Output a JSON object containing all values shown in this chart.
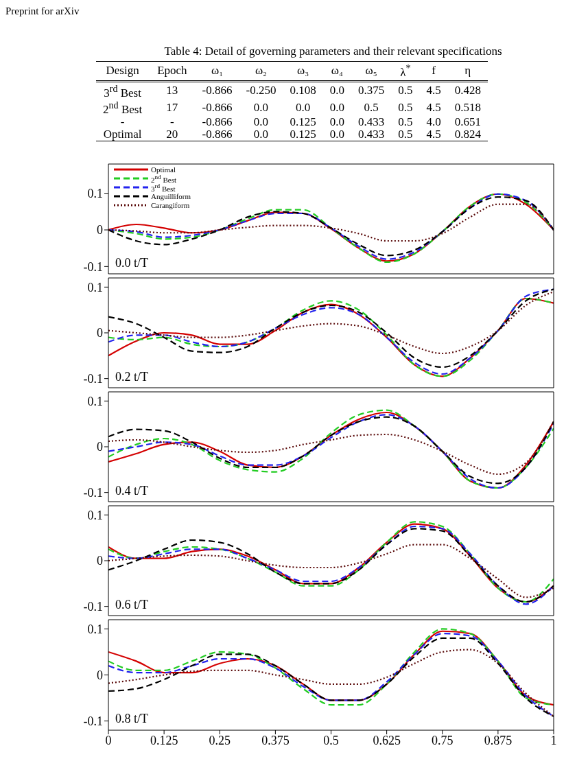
{
  "chart_data": [
    {
      "type": "other",
      "title": "Table 4: Detail of governing parameters and their relevant specifications",
      "annotations": [
        "Preprint for arXiv"
      ],
      "categories": [
        "Design",
        "Epoch",
        "ω₁",
        "ω₂",
        "ω₃",
        "ω₄",
        "ω₅",
        "λ$^{*}$",
        "f",
        "η"
      ],
      "cell_labels": [
        [
          "3$^{rd}$ Best",
          "13",
          "-0.866",
          "-0.250",
          "0.108",
          "0.0",
          "0.375",
          "0.5",
          "4.5",
          "0.428"
        ],
        [
          "2$^{nd}$ Best",
          "17",
          "-0.866",
          "0.0",
          "0.0",
          "0.0",
          "0.5",
          "0.5",
          "4.5",
          "0.518"
        ],
        [
          "-",
          "-",
          "-0.866",
          "0.0",
          "0.125",
          "0.0",
          "0.433",
          "0.5",
          "4.0",
          "0.651"
        ],
        [
          "Optimal",
          "20",
          "-0.866",
          "0.0",
          "0.125",
          "0.0",
          "0.433",
          "0.5",
          "4.5",
          "0.824"
        ]
      ]
    },
    {
      "type": "line",
      "x": [
        0,
        0.0625,
        0.125,
        0.1875,
        0.25,
        0.3125,
        0.375,
        0.4375,
        0.5,
        0.5625,
        0.625,
        0.6875,
        0.75,
        0.8125,
        0.875,
        0.9375,
        1
      ],
      "xlim": [
        0,
        1
      ],
      "xticks": [
        0,
        0.125,
        0.25,
        0.375,
        0.5,
        0.625,
        0.75,
        0.875,
        1
      ],
      "ylim": [
        -0.12,
        0.18
      ],
      "yticks": [
        -0.1,
        0,
        0.1
      ],
      "tick_labels": "y",
      "legend": "top left",
      "annotations": [
        "0.0 t/T"
      ],
      "series": [
        {
          "name": "Optimal",
          "color": "#d40000",
          "line_style": "solid",
          "values": [
            0,
            0.015,
            0.005,
            -0.008,
            0,
            0.025,
            0.048,
            0.045,
            0.003,
            -0.05,
            -0.085,
            -0.065,
            -0.005,
            0.065,
            0.098,
            0.07,
            0
          ]
        },
        {
          "name": "2$^{nd}$ Best",
          "color": "#22cc22",
          "line_style": "dashed",
          "values": [
            0,
            -0.01,
            -0.025,
            -0.02,
            0,
            0.03,
            0.055,
            0.055,
            0.005,
            -0.05,
            -0.088,
            -0.065,
            -0.005,
            0.065,
            0.098,
            0.075,
            0
          ]
        },
        {
          "name": "3$^{rd}$ Best",
          "color": "#2222ee",
          "line_style": "dashed",
          "values": [
            0,
            -0.005,
            -0.02,
            -0.015,
            0,
            0.025,
            0.045,
            0.045,
            0.005,
            -0.045,
            -0.08,
            -0.06,
            -0.005,
            0.06,
            0.098,
            0.08,
            0
          ]
        },
        {
          "name": "Anguilliform",
          "color": "#000000",
          "line_style": "dashed",
          "values": [
            0,
            -0.03,
            -0.04,
            -0.025,
            0,
            0.035,
            0.05,
            0.045,
            0.005,
            -0.04,
            -0.07,
            -0.055,
            -0.005,
            0.06,
            0.09,
            0.08,
            0
          ]
        },
        {
          "name": "Carangiform",
          "color": "#5a0a0a",
          "line_style": "dotted",
          "values": [
            0,
            -0.003,
            -0.008,
            -0.008,
            0,
            0.007,
            0.012,
            0.012,
            0.005,
            -0.01,
            -0.03,
            -0.03,
            -0.01,
            0.035,
            0.07,
            0.07,
            0
          ]
        }
      ]
    },
    {
      "type": "line",
      "x": [
        0,
        0.0625,
        0.125,
        0.1875,
        0.25,
        0.3125,
        0.375,
        0.4375,
        0.5,
        0.5625,
        0.625,
        0.6875,
        0.75,
        0.8125,
        0.875,
        0.9375,
        1
      ],
      "xlim": [
        0,
        1
      ],
      "xticks": [
        0,
        0.125,
        0.25,
        0.375,
        0.5,
        0.625,
        0.75,
        0.875,
        1
      ],
      "ylim": [
        -0.12,
        0.12
      ],
      "yticks": [
        -0.1,
        0,
        0.1
      ],
      "tick_labels": "y",
      "annotations": [
        "0.2 t/T"
      ],
      "series": [
        {
          "color": "#d40000",
          "line_style": "solid",
          "values": [
            -0.05,
            -0.018,
            0,
            -0.005,
            -0.025,
            -0.025,
            0.005,
            0.045,
            0.062,
            0.04,
            -0.01,
            -0.07,
            -0.095,
            -0.055,
            0.005,
            0.075,
            0.065
          ]
        },
        {
          "color": "#22cc22",
          "line_style": "dashed",
          "values": [
            -0.01,
            -0.015,
            -0.01,
            -0.025,
            -0.03,
            -0.02,
            0.01,
            0.05,
            0.07,
            0.05,
            -0.005,
            -0.07,
            -0.095,
            -0.06,
            0.005,
            0.075,
            0.065
          ]
        },
        {
          "color": "#2222ee",
          "line_style": "dashed",
          "values": [
            -0.02,
            -0.005,
            -0.005,
            -0.02,
            -0.03,
            -0.02,
            0.01,
            0.04,
            0.055,
            0.04,
            -0.01,
            -0.065,
            -0.09,
            -0.055,
            0.005,
            0.08,
            0.095
          ]
        },
        {
          "color": "#000000",
          "line_style": "dashed",
          "values": [
            0.035,
            0.02,
            -0.01,
            -0.04,
            -0.043,
            -0.03,
            0.01,
            0.045,
            0.06,
            0.045,
            0,
            -0.055,
            -0.075,
            -0.05,
            0.005,
            0.07,
            0.095
          ]
        },
        {
          "color": "#5a0a0a",
          "line_style": "dotted",
          "values": [
            0.005,
            0,
            -0.005,
            -0.01,
            -0.01,
            -0.005,
            0.005,
            0.015,
            0.02,
            0.015,
            -0.005,
            -0.03,
            -0.045,
            -0.03,
            0.005,
            0.06,
            0.09
          ]
        }
      ]
    },
    {
      "type": "line",
      "x": [
        0,
        0.0625,
        0.125,
        0.1875,
        0.25,
        0.3125,
        0.375,
        0.4375,
        0.5,
        0.5625,
        0.625,
        0.6875,
        0.75,
        0.8125,
        0.875,
        0.9375,
        1
      ],
      "xlim": [
        0,
        1
      ],
      "xticks": [
        0,
        0.125,
        0.25,
        0.375,
        0.5,
        0.625,
        0.75,
        0.875,
        1
      ],
      "ylim": [
        -0.12,
        0.12
      ],
      "yticks": [
        -0.1,
        0,
        0.1
      ],
      "tick_labels": "y",
      "annotations": [
        "0.4 t/T"
      ],
      "series": [
        {
          "color": "#d40000",
          "line_style": "solid",
          "values": [
            -0.033,
            -0.015,
            0.005,
            0.01,
            -0.01,
            -0.04,
            -0.045,
            -0.02,
            0.025,
            0.06,
            0.075,
            0.045,
            -0.01,
            -0.075,
            -0.09,
            -0.04,
            0.055
          ]
        },
        {
          "color": "#22cc22",
          "line_style": "dashed",
          "values": [
            -0.022,
            0.005,
            0.018,
            0.005,
            -0.03,
            -0.05,
            -0.055,
            -0.025,
            0.03,
            0.07,
            0.08,
            0.045,
            -0.01,
            -0.075,
            -0.09,
            -0.045,
            0.04
          ]
        },
        {
          "color": "#2222ee",
          "line_style": "dashed",
          "values": [
            -0.01,
            0,
            0.01,
            0.005,
            -0.02,
            -0.04,
            -0.04,
            -0.02,
            0.02,
            0.055,
            0.07,
            0.045,
            -0.01,
            -0.07,
            -0.09,
            -0.045,
            0.05
          ]
        },
        {
          "color": "#000000",
          "line_style": "dashed",
          "values": [
            0.022,
            0.038,
            0.035,
            0.01,
            -0.025,
            -0.045,
            -0.045,
            -0.02,
            0.025,
            0.055,
            0.065,
            0.045,
            -0.01,
            -0.065,
            -0.08,
            -0.045,
            0.055
          ]
        },
        {
          "color": "#5a0a0a",
          "line_style": "dotted",
          "values": [
            0.012,
            0.015,
            0.01,
            0,
            -0.008,
            -0.012,
            -0.008,
            0.005,
            0.015,
            0.025,
            0.027,
            0.015,
            -0.01,
            -0.04,
            -0.06,
            -0.035,
            0.055
          ]
        }
      ]
    },
    {
      "type": "line",
      "x": [
        0,
        0.0625,
        0.125,
        0.1875,
        0.25,
        0.3125,
        0.375,
        0.4375,
        0.5,
        0.5625,
        0.625,
        0.6875,
        0.75,
        0.8125,
        0.875,
        0.9375,
        1
      ],
      "xlim": [
        0,
        1
      ],
      "xticks": [
        0,
        0.125,
        0.25,
        0.375,
        0.5,
        0.625,
        0.75,
        0.875,
        1
      ],
      "ylim": [
        -0.12,
        0.12
      ],
      "yticks": [
        -0.1,
        0,
        0.1
      ],
      "tick_labels": "y",
      "annotations": [
        "0.6 t/T"
      ],
      "series": [
        {
          "color": "#d40000",
          "line_style": "solid",
          "values": [
            0.03,
            0.005,
            0.005,
            0.02,
            0.025,
            0.01,
            -0.02,
            -0.05,
            -0.05,
            -0.015,
            0.04,
            0.08,
            0.07,
            0.01,
            -0.06,
            -0.09,
            -0.055
          ]
        },
        {
          "color": "#22cc22",
          "line_style": "dashed",
          "values": [
            0.025,
            0.005,
            0.02,
            0.03,
            0.025,
            0.005,
            -0.025,
            -0.055,
            -0.055,
            -0.02,
            0.04,
            0.085,
            0.075,
            0.015,
            -0.06,
            -0.09,
            -0.04
          ]
        },
        {
          "color": "#2222ee",
          "line_style": "dashed",
          "values": [
            0.01,
            0.005,
            0.015,
            0.025,
            0.025,
            0.005,
            -0.02,
            -0.045,
            -0.045,
            -0.015,
            0.035,
            0.075,
            0.07,
            0.015,
            -0.055,
            -0.095,
            -0.055
          ]
        },
        {
          "color": "#000000",
          "line_style": "dashed",
          "values": [
            -0.02,
            0,
            0.025,
            0.045,
            0.04,
            0.015,
            -0.025,
            -0.05,
            -0.05,
            -0.02,
            0.035,
            0.07,
            0.065,
            0.01,
            -0.055,
            -0.09,
            -0.055
          ]
        },
        {
          "color": "#5a0a0a",
          "line_style": "dotted",
          "values": [
            0,
            0.005,
            0.01,
            0.012,
            0.01,
            0,
            -0.01,
            -0.015,
            -0.015,
            -0.005,
            0.015,
            0.035,
            0.035,
            0.005,
            -0.04,
            -0.08,
            -0.06
          ]
        }
      ]
    },
    {
      "type": "line",
      "x": [
        0,
        0.0625,
        0.125,
        0.1875,
        0.25,
        0.3125,
        0.375,
        0.4375,
        0.5,
        0.5625,
        0.625,
        0.6875,
        0.75,
        0.8125,
        0.875,
        0.9375,
        1
      ],
      "xlim": [
        0,
        1
      ],
      "xticks": [
        0,
        0.125,
        0.25,
        0.375,
        0.5,
        0.625,
        0.75,
        0.875,
        1
      ],
      "ylim": [
        -0.12,
        0.12
      ],
      "yticks": [
        -0.1,
        0,
        0.1
      ],
      "annotations": [
        "0.8 t/T"
      ],
      "series": [
        {
          "color": "#d40000",
          "line_style": "solid",
          "values": [
            0.05,
            0.03,
            0.005,
            0.005,
            0.025,
            0.035,
            0.02,
            -0.02,
            -0.055,
            -0.055,
            -0.02,
            0.045,
            0.095,
            0.09,
            0.03,
            -0.045,
            -0.065
          ]
        },
        {
          "color": "#22cc22",
          "line_style": "dashed",
          "values": [
            0.03,
            0.01,
            0.01,
            0.03,
            0.05,
            0.045,
            0.015,
            -0.03,
            -0.065,
            -0.065,
            -0.02,
            0.05,
            0.1,
            0.09,
            0.03,
            -0.05,
            -0.065
          ]
        },
        {
          "color": "#2222ee",
          "line_style": "dashed",
          "values": [
            0.02,
            0.005,
            0.005,
            0.02,
            0.035,
            0.035,
            0.015,
            -0.025,
            -0.055,
            -0.055,
            -0.015,
            0.045,
            0.09,
            0.085,
            0.03,
            -0.045,
            -0.09
          ]
        },
        {
          "color": "#000000",
          "line_style": "dashed",
          "values": [
            -0.035,
            -0.03,
            -0.01,
            0.02,
            0.045,
            0.045,
            0.02,
            -0.02,
            -0.055,
            -0.055,
            -0.02,
            0.04,
            0.08,
            0.08,
            0.025,
            -0.05,
            -0.09
          ]
        },
        {
          "color": "#5a0a0a",
          "line_style": "dotted",
          "values": [
            -0.018,
            -0.01,
            0,
            0.008,
            0.01,
            0.01,
            0,
            -0.01,
            -0.02,
            -0.02,
            -0.005,
            0.025,
            0.05,
            0.055,
            0.025,
            -0.04,
            -0.09
          ]
        }
      ]
    }
  ]
}
